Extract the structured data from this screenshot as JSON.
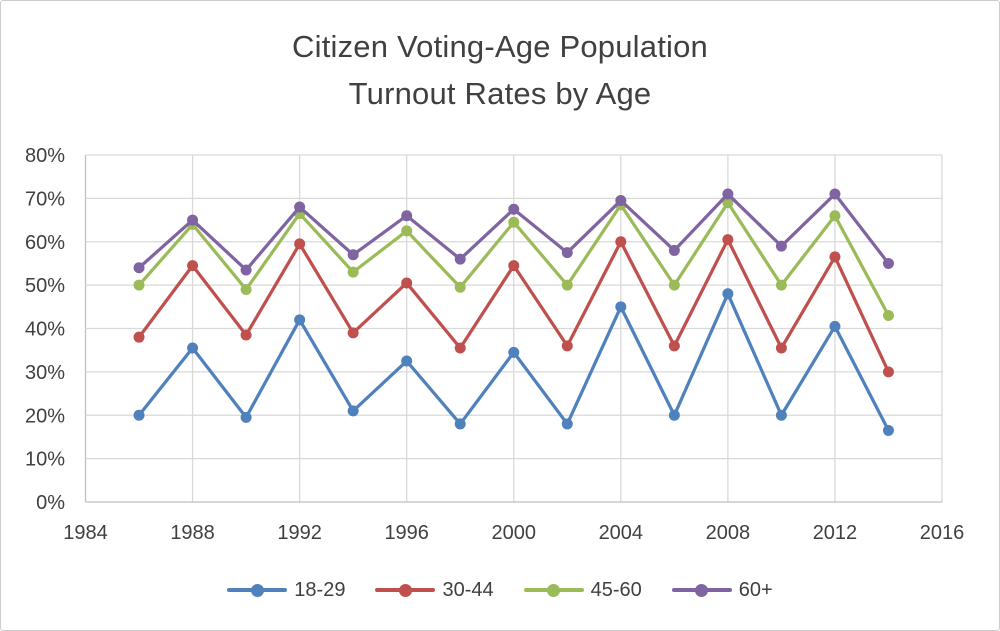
{
  "title": {
    "line1": "Citizen Voting-Age Population",
    "line2": "Turnout Rates by Age"
  },
  "axes": {
    "x_tick_labels": [
      "1984",
      "1988",
      "1992",
      "1996",
      "2000",
      "2004",
      "2008",
      "2012",
      "2016"
    ],
    "y_tick_labels": [
      "0%",
      "10%",
      "20%",
      "30%",
      "40%",
      "50%",
      "60%",
      "70%",
      "80%"
    ]
  },
  "colors": {
    "series_18_29": "#4F81BD",
    "series_30_44": "#C0504D",
    "series_45_60": "#9BBB59",
    "series_60_plus": "#8064A2",
    "gridline": "#D9D9D9",
    "axis_line": "#BFBFBF",
    "text": "#404040",
    "background": "#FFFFFF"
  },
  "chart_data": {
    "type": "line",
    "title": "Citizen Voting-Age Population Turnout Rates by Age",
    "xlabel": "",
    "ylabel": "",
    "x": [
      1986,
      1988,
      1990,
      1992,
      1994,
      1996,
      1998,
      2000,
      2002,
      2004,
      2006,
      2008,
      2010,
      2012,
      2014
    ],
    "series": [
      {
        "name": "18-29",
        "color": "#4F81BD",
        "values": [
          20,
          35.5,
          19.5,
          42,
          21,
          32.5,
          18,
          34.5,
          18,
          45,
          20,
          48,
          20,
          40.5,
          16.5
        ]
      },
      {
        "name": "30-44",
        "color": "#C0504D",
        "values": [
          38,
          54.5,
          38.5,
          59.5,
          39,
          50.5,
          35.5,
          54.5,
          36,
          60,
          36,
          60.5,
          35.5,
          56.5,
          30
        ]
      },
      {
        "name": "45-60",
        "color": "#9BBB59",
        "values": [
          50,
          64,
          49,
          66.5,
          53,
          62.5,
          49.5,
          64.5,
          50,
          68.5,
          50,
          69,
          50,
          66,
          43
        ]
      },
      {
        "name": "60+",
        "color": "#8064A2",
        "values": [
          54,
          65,
          53.5,
          68,
          57,
          66,
          56,
          67.5,
          57.5,
          69.5,
          58,
          71,
          59,
          71,
          55
        ]
      }
    ],
    "xlim": [
      1984,
      2016
    ],
    "ylim": [
      0,
      80
    ],
    "x_ticks": [
      1984,
      1988,
      1992,
      1996,
      2000,
      2004,
      2008,
      2012,
      2016
    ],
    "y_ticks": [
      0,
      10,
      20,
      30,
      40,
      50,
      60,
      70,
      80
    ],
    "y_tick_format": "percent",
    "grid": true,
    "legend_position": "bottom"
  }
}
